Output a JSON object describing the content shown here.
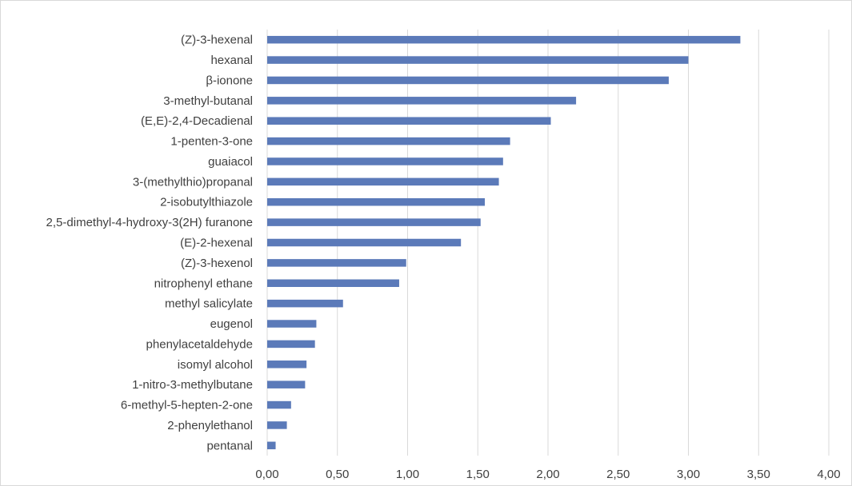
{
  "chart_data": {
    "type": "bar",
    "orientation": "horizontal",
    "title": "",
    "xlabel": "",
    "ylabel": "",
    "xlim": [
      0,
      4
    ],
    "grid": true,
    "legend": "none",
    "bar_color": "#5b7ab9",
    "x_ticks": [
      "0,00",
      "0,50",
      "1,00",
      "1,50",
      "2,00",
      "2,50",
      "3,00",
      "3,50",
      "4,00"
    ],
    "categories": [
      "(Z)-3-hexenal",
      "hexanal",
      "β-ionone",
      "3-methyl-butanal",
      "(E,E)-2,4-Decadienal",
      "1-penten-3-one",
      "guaiacol",
      "3-(methylthio)propanal",
      "2-isobutylthiazole",
      "2,5-dimethyl-4-hydroxy-3(2H) furanone",
      "(E)-2-hexenal",
      "(Z)-3-hexenol",
      "nitrophenyl ethane",
      "methyl salicylate",
      "eugenol",
      "phenylacetaldehyde",
      "isomyl alcohol",
      "1-nitro-3-methylbutane",
      "6-methyl-5-hepten-2-one",
      "2-phenylethanol",
      "pentanal"
    ],
    "values": [
      3.37,
      3.0,
      2.86,
      2.2,
      2.02,
      1.73,
      1.68,
      1.65,
      1.55,
      1.52,
      1.38,
      0.99,
      0.94,
      0.54,
      0.35,
      0.34,
      0.28,
      0.27,
      0.17,
      0.14,
      0.06
    ]
  }
}
